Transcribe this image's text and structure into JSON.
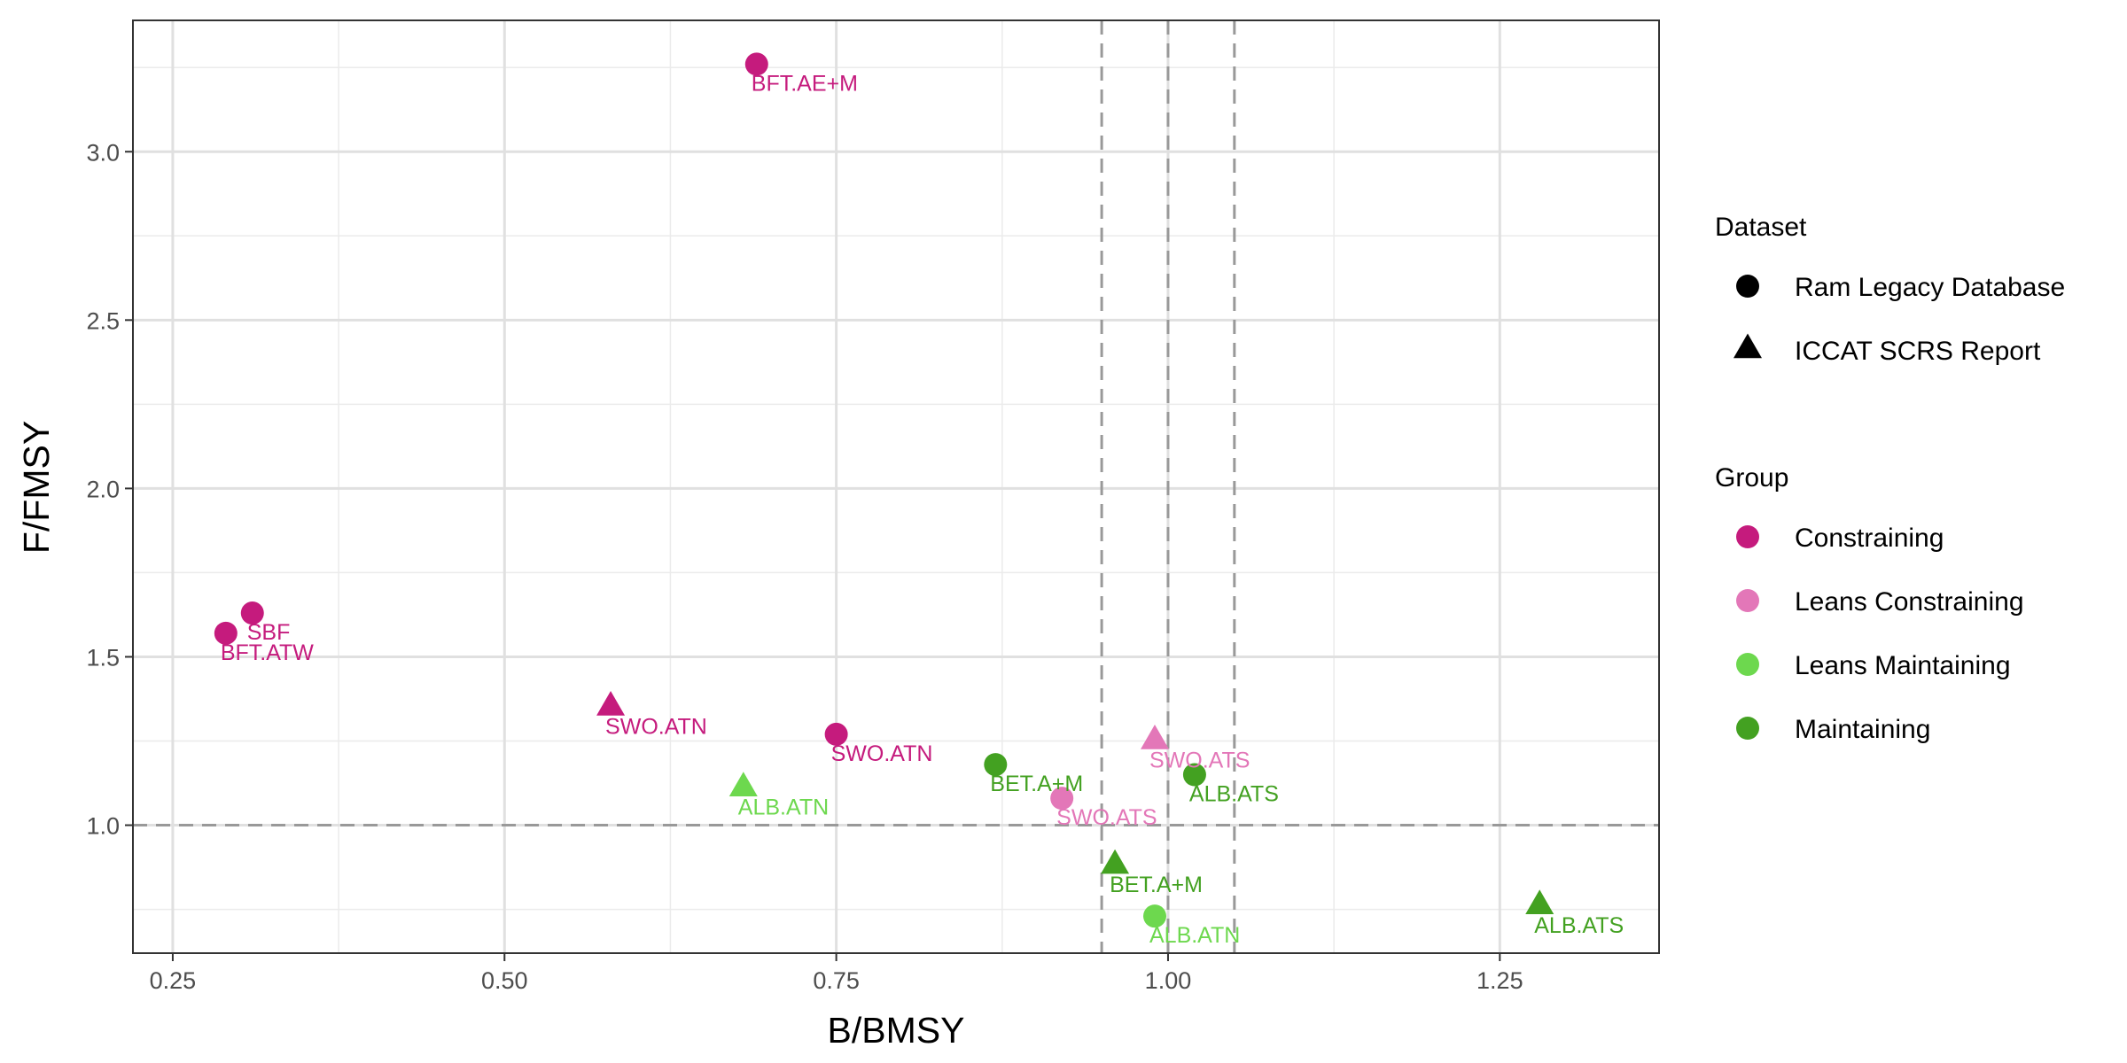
{
  "chart_data": {
    "type": "scatter",
    "xlabel": "B/BMSY",
    "ylabel": "F/FMSY",
    "xlim": [
      0.22,
      1.37
    ],
    "ylim": [
      0.62,
      3.39
    ],
    "x_ticks": [
      0.25,
      0.5,
      0.75,
      1.0,
      1.25
    ],
    "x_tick_labels": [
      "0.25",
      "0.50",
      "0.75",
      "1.00",
      "1.25"
    ],
    "y_ticks": [
      1.0,
      1.5,
      2.0,
      2.5,
      3.0
    ],
    "y_tick_labels": [
      "1.0",
      "1.5",
      "2.0",
      "2.5",
      "3.0"
    ],
    "grid": true,
    "reference_lines": {
      "vertical": [
        0.95,
        1.0,
        1.05
      ],
      "horizontal": [
        1.0
      ],
      "style": "dashed"
    },
    "group_colors": {
      "Constraining": "#C51B7D",
      "Leans Constraining": "#E377B8",
      "Leans Maintaining": "#6DD84E",
      "Maintaining": "#43A121"
    },
    "points": [
      {
        "label": "BFT.AE+M",
        "x": 0.69,
        "y": 3.26,
        "group": "Constraining",
        "dataset": "Ram Legacy Database"
      },
      {
        "label": "SBF",
        "x": 0.31,
        "y": 1.63,
        "group": "Constraining",
        "dataset": "Ram Legacy Database"
      },
      {
        "label": "BFT.ATW",
        "x": 0.29,
        "y": 1.57,
        "group": "Constraining",
        "dataset": "Ram Legacy Database"
      },
      {
        "label": "SWO.ATN",
        "x": 0.58,
        "y": 1.35,
        "group": "Constraining",
        "dataset": "ICCAT SCRS Report"
      },
      {
        "label": "SWO.ATN",
        "x": 0.75,
        "y": 1.27,
        "group": "Constraining",
        "dataset": "Ram Legacy Database"
      },
      {
        "label": "BET.A+M",
        "x": 0.87,
        "y": 1.18,
        "group": "Maintaining",
        "dataset": "Ram Legacy Database"
      },
      {
        "label": "SWO.ATS",
        "x": 0.99,
        "y": 1.25,
        "group": "Leans Constraining",
        "dataset": "ICCAT SCRS Report"
      },
      {
        "label": "ALB.ATS",
        "x": 1.02,
        "y": 1.15,
        "group": "Maintaining",
        "dataset": "Ram Legacy Database"
      },
      {
        "label": "SWO.ATS",
        "x": 0.92,
        "y": 1.08,
        "group": "Leans Constraining",
        "dataset": "Ram Legacy Database"
      },
      {
        "label": "ALB.ATN",
        "x": 0.68,
        "y": 1.11,
        "group": "Leans Maintaining",
        "dataset": "ICCAT SCRS Report"
      },
      {
        "label": "BET.A+M",
        "x": 0.96,
        "y": 0.88,
        "group": "Maintaining",
        "dataset": "ICCAT SCRS Report"
      },
      {
        "label": "ALB.ATN",
        "x": 0.99,
        "y": 0.73,
        "group": "Leans Maintaining",
        "dataset": "Ram Legacy Database"
      },
      {
        "label": "ALB.ATS",
        "x": 1.28,
        "y": 0.76,
        "group": "Maintaining",
        "dataset": "ICCAT SCRS Report"
      }
    ],
    "legend": {
      "position": "right",
      "dataset_title": "Dataset",
      "dataset_entries": [
        {
          "name": "Ram Legacy Database",
          "shape": "circle"
        },
        {
          "name": "ICCAT SCRS Report",
          "shape": "triangle"
        }
      ],
      "group_title": "Group",
      "group_entries": [
        "Constraining",
        "Leans Constraining",
        "Leans Maintaining",
        "Maintaining"
      ]
    }
  }
}
